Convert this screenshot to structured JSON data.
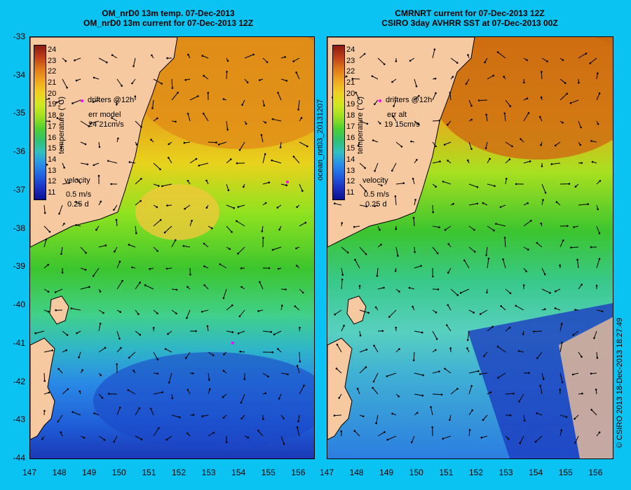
{
  "colors": {
    "background": "#0bc3f3",
    "land": "#f6c9a1",
    "drifter": "#ff00ff",
    "arrow": "#000000"
  },
  "left_panel": {
    "title_line1": "OM_nrD0 13m temp. 07-Dec-2013",
    "title_line2": "OM_nrD0 13m current for 07-Dec-2013 12Z",
    "drifters_label": "drifters @12h",
    "err_label": "err model",
    "err_values": "24 21cm/s",
    "velocity_label": "velocity",
    "velocity_scale": "0.5 m/s",
    "velocity_time": "0.25 d"
  },
  "right_panel": {
    "title_line1": "CMRNRT current for 07-Dec-2013 12Z",
    "title_line2": "CSIRO 3day AVHRR SST at 07-Dec-2013 00Z",
    "drifters_label": "drifters @12h",
    "err_label": "err alt",
    "err_values": "19 15cm/s",
    "velocity_label": "velocity",
    "velocity_scale": "0.5 m/s",
    "velocity_time": "0.25 d"
  },
  "colorbar": {
    "label": "temperature (°C)",
    "ticks": [
      "24",
      "23",
      "22",
      "21",
      "20",
      "19",
      "18",
      "17",
      "16",
      "15",
      "14",
      "13",
      "12",
      "11"
    ]
  },
  "axes": {
    "y_ticks": [
      "-33",
      "-34",
      "-35",
      "-36",
      "-37",
      "-38",
      "-39",
      "-40",
      "-41",
      "-42",
      "-43",
      "-44"
    ],
    "x_ticks": [
      "147",
      "148",
      "149",
      "150",
      "151",
      "152",
      "153",
      "154",
      "155",
      "156"
    ]
  },
  "side_label": "ocean_nrt03_20131207",
  "credit": "© CSIRO 2013   18-Dec-2013 18:27:49"
}
